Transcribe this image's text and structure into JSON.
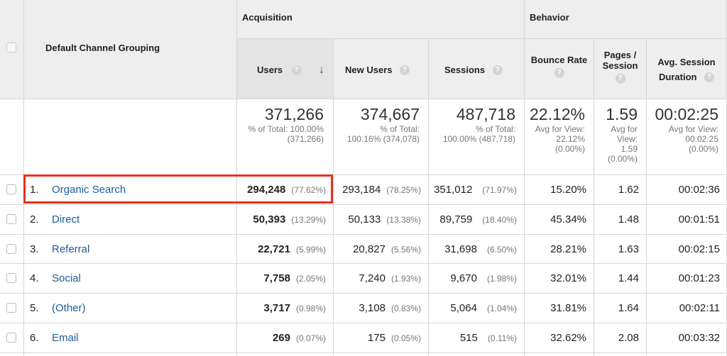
{
  "header": {
    "dimension": "Default Channel Grouping",
    "acquisition": "Acquisition",
    "behavior": "Behavior",
    "columns": {
      "users": "Users",
      "new_users": "New Users",
      "sessions": "Sessions",
      "bounce_rate": "Bounce Rate",
      "pages_per_session_1": "Pages /",
      "pages_per_session_2": "Session",
      "avg_duration_1": "Avg. Session",
      "avg_duration_2": "Duration"
    },
    "help_glyph": "?",
    "sort_glyph": "↓"
  },
  "totals": {
    "users": {
      "value": "371,266",
      "l1": "% of Total: 100.00%",
      "l2": "(371,266)"
    },
    "new_users": {
      "value": "374,667",
      "l1": "% of Total:",
      "l2": "100.16% (374,078)"
    },
    "sessions": {
      "value": "487,718",
      "l1": "% of Total:",
      "l2": "100.00% (487,718)"
    },
    "bounce_rate": {
      "value": "22.12%",
      "l1": "Avg for View:",
      "l2": "22.12%",
      "l3": "(0.00%)"
    },
    "pages": {
      "value": "1.59",
      "l1": "Avg for",
      "l2": "View:",
      "l3": "1.59",
      "l4": "(0.00%)"
    },
    "duration": {
      "value": "00:02:25",
      "l1": "Avg for View:",
      "l2": "00:02:25",
      "l3": "(0.00%)"
    }
  },
  "rows": [
    {
      "idx": "1.",
      "channel": "Organic Search",
      "users": "294,248",
      "users_pct": "(77.62%)",
      "new_users": "293,184",
      "new_users_pct": "(78.25%)",
      "sessions": "351,012",
      "sessions_pct": "(71.97%)",
      "bounce": "15.20%",
      "pages": "1.62",
      "duration": "00:02:36"
    },
    {
      "idx": "2.",
      "channel": "Direct",
      "users": "50,393",
      "users_pct": "(13.29%)",
      "new_users": "50,133",
      "new_users_pct": "(13.38%)",
      "sessions": "89,759",
      "sessions_pct": "(18.40%)",
      "bounce": "45.34%",
      "pages": "1.48",
      "duration": "00:01:51"
    },
    {
      "idx": "3.",
      "channel": "Referral",
      "users": "22,721",
      "users_pct": "(5.99%)",
      "new_users": "20,827",
      "new_users_pct": "(5.56%)",
      "sessions": "31,698",
      "sessions_pct": "(6.50%)",
      "bounce": "28.21%",
      "pages": "1.63",
      "duration": "00:02:15"
    },
    {
      "idx": "4.",
      "channel": "Social",
      "users": "7,758",
      "users_pct": "(2.05%)",
      "new_users": "7,240",
      "new_users_pct": "(1.93%)",
      "sessions": "9,670",
      "sessions_pct": "(1.98%)",
      "bounce": "32.01%",
      "pages": "1.44",
      "duration": "00:01:23"
    },
    {
      "idx": "5.",
      "channel": "(Other)",
      "users": "3,717",
      "users_pct": "(0.98%)",
      "new_users": "3,108",
      "new_users_pct": "(0.83%)",
      "sessions": "5,064",
      "sessions_pct": "(1.04%)",
      "bounce": "31.81%",
      "pages": "1.64",
      "duration": "00:02:11"
    },
    {
      "idx": "6.",
      "channel": "Email",
      "users": "269",
      "users_pct": "(0.07%)",
      "new_users": "175",
      "new_users_pct": "(0.05%)",
      "sessions": "515",
      "sessions_pct": "(0.11%)",
      "bounce": "32.62%",
      "pages": "2.08",
      "duration": "00:03:32"
    }
  ],
  "colors": {
    "link": "#1f5c9c",
    "highlight": "#e8301f",
    "header_bg": "#eeeeee"
  }
}
